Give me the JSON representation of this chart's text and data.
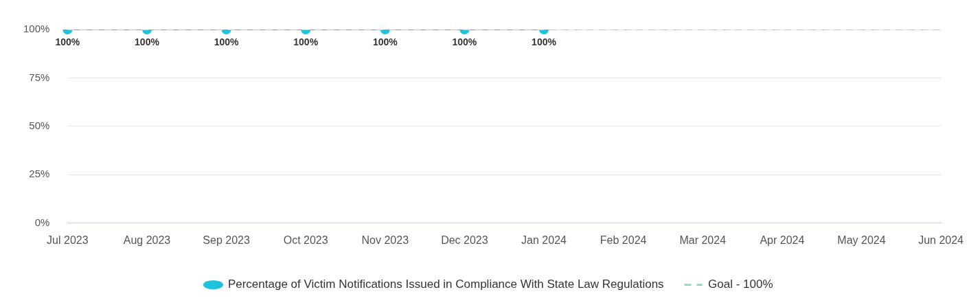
{
  "chart_data": {
    "type": "line",
    "categories": [
      "Jul 2023",
      "Aug 2023",
      "Sep 2023",
      "Oct 2023",
      "Nov 2023",
      "Dec 2023",
      "Jan 2024",
      "Feb 2024",
      "Mar 2024",
      "Apr 2024",
      "May 2024",
      "Jun 2024"
    ],
    "series": [
      {
        "name": "Percentage of Victim Notifications Issued in Compliance With State Law Regulations",
        "color": "#1fc3dc",
        "values": [
          100,
          100,
          100,
          100,
          100,
          100,
          100,
          null,
          null,
          null,
          null,
          null
        ],
        "value_labels": [
          "100%",
          "100%",
          "100%",
          "100%",
          "100%",
          "100%",
          "100%",
          null,
          null,
          null,
          null,
          null
        ],
        "marker": "circle",
        "line_style": "solid"
      },
      {
        "name": "Goal - 100%",
        "color": "#8ee3ae",
        "values": [
          100,
          100,
          100,
          100,
          100,
          100,
          100,
          100,
          100,
          100,
          100,
          100
        ],
        "marker": "none",
        "line_style": "dashed"
      }
    ],
    "ylim": [
      0,
      100
    ],
    "yticks": [
      {
        "value": 0,
        "label": "0%"
      },
      {
        "value": 25,
        "label": "25%"
      },
      {
        "value": 50,
        "label": "50%"
      },
      {
        "value": 75,
        "label": "75%"
      },
      {
        "value": 100,
        "label": "100%"
      }
    ],
    "grid": "y",
    "legend": "bottom"
  }
}
